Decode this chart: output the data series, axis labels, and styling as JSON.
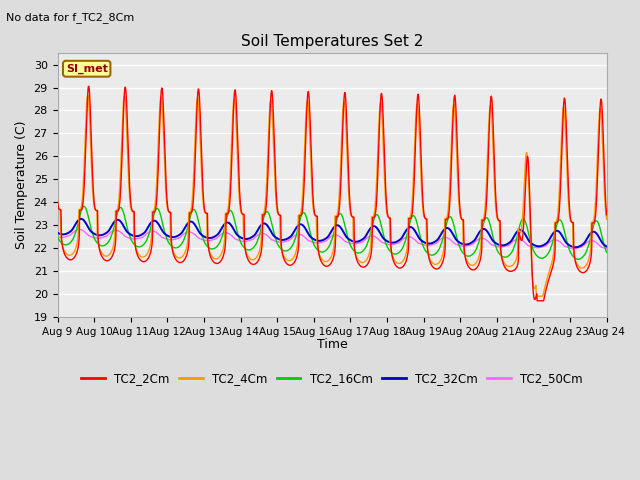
{
  "title": "Soil Temperatures Set 2",
  "subtitle": "No data for f_TC2_8Cm",
  "ylabel": "Soil Temperature (C)",
  "xlabel": "Time",
  "ylim": [
    19.0,
    30.5
  ],
  "yticks": [
    19.0,
    20.0,
    21.0,
    22.0,
    23.0,
    24.0,
    25.0,
    26.0,
    27.0,
    28.0,
    29.0,
    30.0
  ],
  "xlabels": [
    "Aug 9",
    "Aug 10",
    "Aug 11",
    "Aug 12",
    "Aug 13",
    "Aug 14",
    "Aug 15",
    "Aug 16",
    "Aug 17",
    "Aug 18",
    "Aug 19",
    "Aug 20",
    "Aug 21",
    "Aug 22",
    "Aug 23",
    "Aug 24"
  ],
  "series_colors": {
    "TC2_2Cm": "#ff0000",
    "TC2_4Cm": "#ff9900",
    "TC2_16Cm": "#00cc00",
    "TC2_32Cm": "#0000cc",
    "TC2_50Cm": "#ff66ff"
  },
  "legend_label": "SI_met",
  "legend_box_color": "#ffff99",
  "legend_box_border": "#996600",
  "background_color": "#dddddd",
  "plot_bg_color": "#ebebeb",
  "grid_color": "#ffffff",
  "n_points": 1440,
  "n_days": 15
}
